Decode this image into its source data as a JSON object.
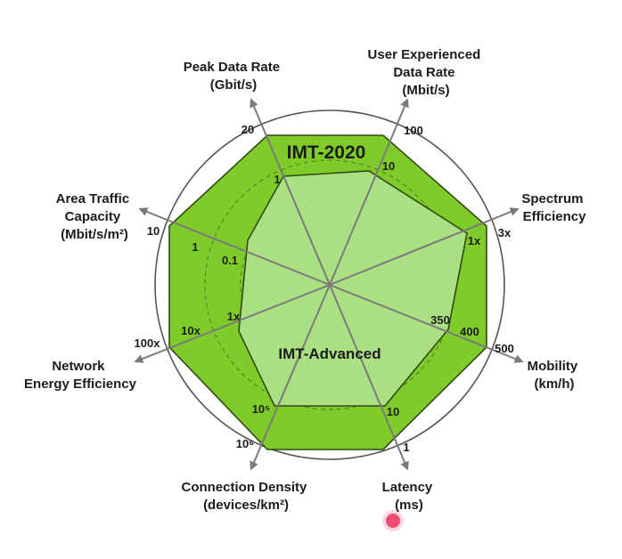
{
  "colors": {
    "outer_fill": "#7ecb2a",
    "inner_fill": "#aee28a",
    "edge": "#2f4a12",
    "arrow": "#7a7a7a",
    "ring": "#555555",
    "marker": "#e8365d"
  },
  "titles": {
    "imt2020": "IMT-2020",
    "imt_advanced": "IMT-Advanced"
  },
  "axes": [
    {
      "id": "peak-data-rate",
      "lines": [
        "Peak Data Rate",
        "(Gbit/s)"
      ]
    },
    {
      "id": "user-experienced-data-rate",
      "lines": [
        "User Experienced",
        "Data Rate",
        "(Mbit/s)"
      ]
    },
    {
      "id": "spectrum-efficiency",
      "lines": [
        "Spectrum",
        "Efficiency"
      ]
    },
    {
      "id": "mobility",
      "lines": [
        "Mobility",
        "(km/h)"
      ]
    },
    {
      "id": "latency",
      "lines": [
        "Latency",
        "(ms)"
      ]
    },
    {
      "id": "connection-density",
      "lines": [
        "Connection Density",
        "(devices/km²)"
      ]
    },
    {
      "id": "network-energy-efficiency",
      "lines": [
        "Network",
        "Energy Efficiency"
      ]
    },
    {
      "id": "area-traffic-capacity",
      "lines": [
        "Area Traffic",
        "Capacity",
        "(Mbit/s/m²)"
      ]
    }
  ],
  "ticks": {
    "peak_imt2020": "20",
    "peak_adv": "1",
    "user_imt2020": "100",
    "user_adv": "10",
    "spectrum_imt2020": "3x",
    "spectrum_adv": "1x",
    "mobility_imt2020": "500",
    "mobility_mid": "400",
    "mobility_adv": "350",
    "latency_imt2020": "1",
    "latency_adv": "10",
    "conn_imt2020": "10⁶",
    "conn_adv": "10⁵",
    "energy_imt2020": "100x",
    "energy_mid": "10x",
    "energy_adv": "1x",
    "area_imt2020": "10",
    "area_mid": "1",
    "area_adv": "0.1"
  }
}
